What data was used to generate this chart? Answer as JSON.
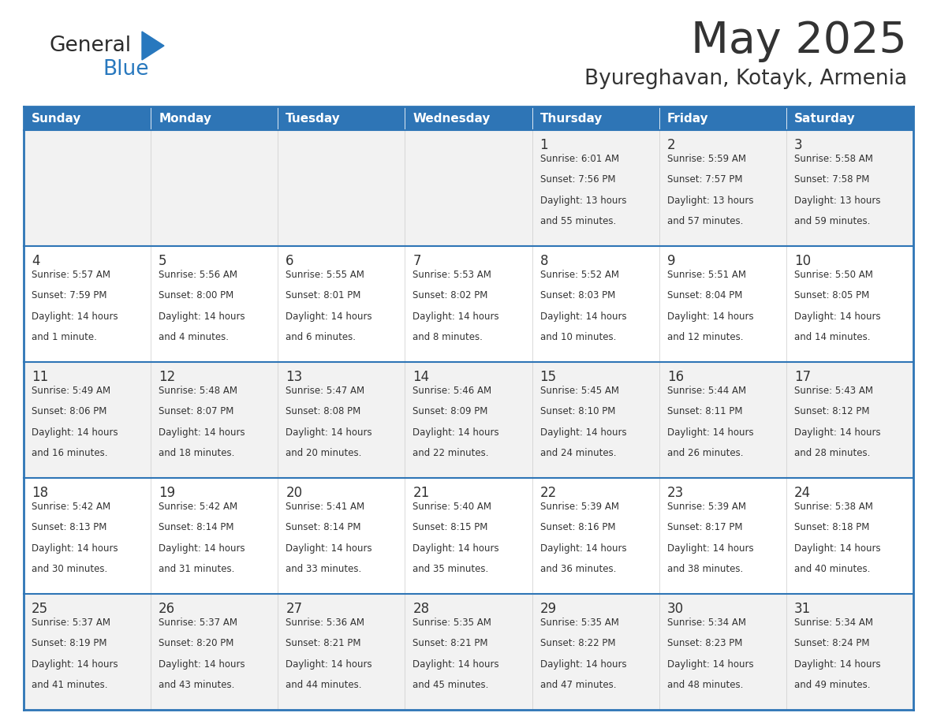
{
  "title": "May 2025",
  "subtitle": "Byureghavan, Kotayk, Armenia",
  "header_bg": "#2E75B6",
  "header_text_color": "#FFFFFF",
  "cell_bg_odd": "#F2F2F2",
  "cell_bg_even": "#FFFFFF",
  "border_color": "#2E75B6",
  "text_color": "#333333",
  "days_of_week": [
    "Sunday",
    "Monday",
    "Tuesday",
    "Wednesday",
    "Thursday",
    "Friday",
    "Saturday"
  ],
  "weeks": [
    [
      {
        "day": "",
        "sunrise": "",
        "sunset": "",
        "daylight": ""
      },
      {
        "day": "",
        "sunrise": "",
        "sunset": "",
        "daylight": ""
      },
      {
        "day": "",
        "sunrise": "",
        "sunset": "",
        "daylight": ""
      },
      {
        "day": "",
        "sunrise": "",
        "sunset": "",
        "daylight": ""
      },
      {
        "day": "1",
        "sunrise": "6:01 AM",
        "sunset": "7:56 PM",
        "daylight": "13 hours and 55 minutes."
      },
      {
        "day": "2",
        "sunrise": "5:59 AM",
        "sunset": "7:57 PM",
        "daylight": "13 hours and 57 minutes."
      },
      {
        "day": "3",
        "sunrise": "5:58 AM",
        "sunset": "7:58 PM",
        "daylight": "13 hours and 59 minutes."
      }
    ],
    [
      {
        "day": "4",
        "sunrise": "5:57 AM",
        "sunset": "7:59 PM",
        "daylight": "14 hours and 1 minute."
      },
      {
        "day": "5",
        "sunrise": "5:56 AM",
        "sunset": "8:00 PM",
        "daylight": "14 hours and 4 minutes."
      },
      {
        "day": "6",
        "sunrise": "5:55 AM",
        "sunset": "8:01 PM",
        "daylight": "14 hours and 6 minutes."
      },
      {
        "day": "7",
        "sunrise": "5:53 AM",
        "sunset": "8:02 PM",
        "daylight": "14 hours and 8 minutes."
      },
      {
        "day": "8",
        "sunrise": "5:52 AM",
        "sunset": "8:03 PM",
        "daylight": "14 hours and 10 minutes."
      },
      {
        "day": "9",
        "sunrise": "5:51 AM",
        "sunset": "8:04 PM",
        "daylight": "14 hours and 12 minutes."
      },
      {
        "day": "10",
        "sunrise": "5:50 AM",
        "sunset": "8:05 PM",
        "daylight": "14 hours and 14 minutes."
      }
    ],
    [
      {
        "day": "11",
        "sunrise": "5:49 AM",
        "sunset": "8:06 PM",
        "daylight": "14 hours and 16 minutes."
      },
      {
        "day": "12",
        "sunrise": "5:48 AM",
        "sunset": "8:07 PM",
        "daylight": "14 hours and 18 minutes."
      },
      {
        "day": "13",
        "sunrise": "5:47 AM",
        "sunset": "8:08 PM",
        "daylight": "14 hours and 20 minutes."
      },
      {
        "day": "14",
        "sunrise": "5:46 AM",
        "sunset": "8:09 PM",
        "daylight": "14 hours and 22 minutes."
      },
      {
        "day": "15",
        "sunrise": "5:45 AM",
        "sunset": "8:10 PM",
        "daylight": "14 hours and 24 minutes."
      },
      {
        "day": "16",
        "sunrise": "5:44 AM",
        "sunset": "8:11 PM",
        "daylight": "14 hours and 26 minutes."
      },
      {
        "day": "17",
        "sunrise": "5:43 AM",
        "sunset": "8:12 PM",
        "daylight": "14 hours and 28 minutes."
      }
    ],
    [
      {
        "day": "18",
        "sunrise": "5:42 AM",
        "sunset": "8:13 PM",
        "daylight": "14 hours and 30 minutes."
      },
      {
        "day": "19",
        "sunrise": "5:42 AM",
        "sunset": "8:14 PM",
        "daylight": "14 hours and 31 minutes."
      },
      {
        "day": "20",
        "sunrise": "5:41 AM",
        "sunset": "8:14 PM",
        "daylight": "14 hours and 33 minutes."
      },
      {
        "day": "21",
        "sunrise": "5:40 AM",
        "sunset": "8:15 PM",
        "daylight": "14 hours and 35 minutes."
      },
      {
        "day": "22",
        "sunrise": "5:39 AM",
        "sunset": "8:16 PM",
        "daylight": "14 hours and 36 minutes."
      },
      {
        "day": "23",
        "sunrise": "5:39 AM",
        "sunset": "8:17 PM",
        "daylight": "14 hours and 38 minutes."
      },
      {
        "day": "24",
        "sunrise": "5:38 AM",
        "sunset": "8:18 PM",
        "daylight": "14 hours and 40 minutes."
      }
    ],
    [
      {
        "day": "25",
        "sunrise": "5:37 AM",
        "sunset": "8:19 PM",
        "daylight": "14 hours and 41 minutes."
      },
      {
        "day": "26",
        "sunrise": "5:37 AM",
        "sunset": "8:20 PM",
        "daylight": "14 hours and 43 minutes."
      },
      {
        "day": "27",
        "sunrise": "5:36 AM",
        "sunset": "8:21 PM",
        "daylight": "14 hours and 44 minutes."
      },
      {
        "day": "28",
        "sunrise": "5:35 AM",
        "sunset": "8:21 PM",
        "daylight": "14 hours and 45 minutes."
      },
      {
        "day": "29",
        "sunrise": "5:35 AM",
        "sunset": "8:22 PM",
        "daylight": "14 hours and 47 minutes."
      },
      {
        "day": "30",
        "sunrise": "5:34 AM",
        "sunset": "8:23 PM",
        "daylight": "14 hours and 48 minutes."
      },
      {
        "day": "31",
        "sunrise": "5:34 AM",
        "sunset": "8:24 PM",
        "daylight": "14 hours and 49 minutes."
      }
    ]
  ],
  "logo_text1": "General",
  "logo_text2": "Blue",
  "logo_text1_color": "#2B2B2B",
  "logo_text2_color": "#2878BE",
  "logo_triangle_color": "#2878BE",
  "fig_width": 11.88,
  "fig_height": 9.18,
  "dpi": 100
}
